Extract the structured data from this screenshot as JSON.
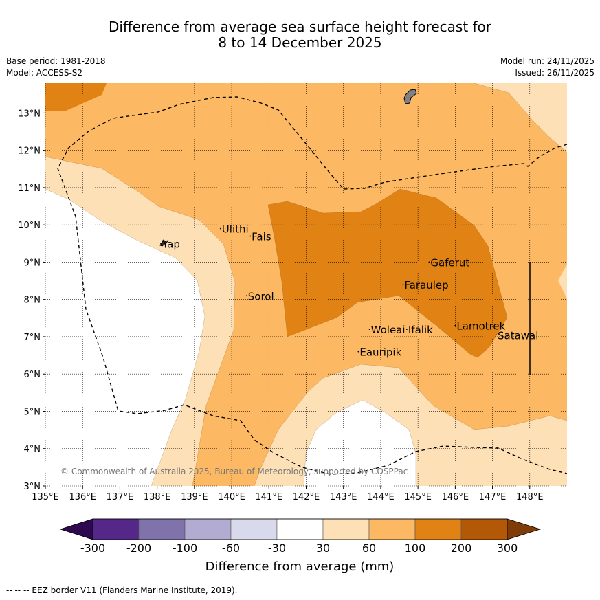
{
  "title": {
    "line1": "Difference from average sea surface height forecast for",
    "line2": "8 to 14 December 2025"
  },
  "meta": {
    "base_period": "Base period: 1981-2018",
    "model": "Model: ACCESS-S2",
    "model_run": "Model run: 24/11/2025",
    "issued": "Issued: 26/11/2025"
  },
  "map": {
    "lon_range": [
      135,
      149
    ],
    "lat_range": [
      3,
      13.8
    ],
    "lon_ticks": [
      "135°E",
      "136°E",
      "137°E",
      "138°E",
      "139°E",
      "140°E",
      "141°E",
      "142°E",
      "143°E",
      "144°E",
      "145°E",
      "146°E",
      "147°E",
      "148°E"
    ],
    "lat_ticks": [
      "3°N",
      "4°N",
      "5°N",
      "6°N",
      "7°N",
      "8°N",
      "9°N",
      "10°N",
      "11°N",
      "12°N",
      "13°N"
    ],
    "places": [
      {
        "name": "Yap",
        "lon": 138.1,
        "lat": 9.5
      },
      {
        "name": "Ulithi",
        "lon": 139.7,
        "lat": 9.9
      },
      {
        "name": "Fais",
        "lon": 140.5,
        "lat": 9.7
      },
      {
        "name": "Sorol",
        "lon": 140.4,
        "lat": 8.1
      },
      {
        "name": "Gaferut",
        "lon": 145.3,
        "lat": 9.0
      },
      {
        "name": "Faraulep",
        "lon": 144.6,
        "lat": 8.4
      },
      {
        "name": "Lamotrek",
        "lon": 146.0,
        "lat": 7.3
      },
      {
        "name": "Satawal",
        "lon": 147.1,
        "lat": 7.05
      },
      {
        "name": "Woleai",
        "lon": 143.7,
        "lat": 7.2
      },
      {
        "name": "Ifalik",
        "lon": 144.7,
        "lat": 7.2
      },
      {
        "name": "Eauripik",
        "lon": 143.4,
        "lat": 6.6
      }
    ],
    "copyright": "© Commonwealth of Australia 2025, Bureau of Meteorology, supported by COSPPac"
  },
  "colorbar": {
    "ticks": [
      "-300",
      "-200",
      "-100",
      "-60",
      "-30",
      "30",
      "60",
      "100",
      "200",
      "300"
    ],
    "colors": [
      "#2d0a4e",
      "#542788",
      "#8073ac",
      "#b2abd2",
      "#d8daeb",
      "#ffffff",
      "#fee0b6",
      "#fdb863",
      "#e08214",
      "#b35806",
      "#7f3b08"
    ],
    "label": "Difference from average (mm)"
  },
  "legend": {
    "footnote": "--  --  -- EEZ border V11 (Flanders Marine Institute, 2019)."
  }
}
